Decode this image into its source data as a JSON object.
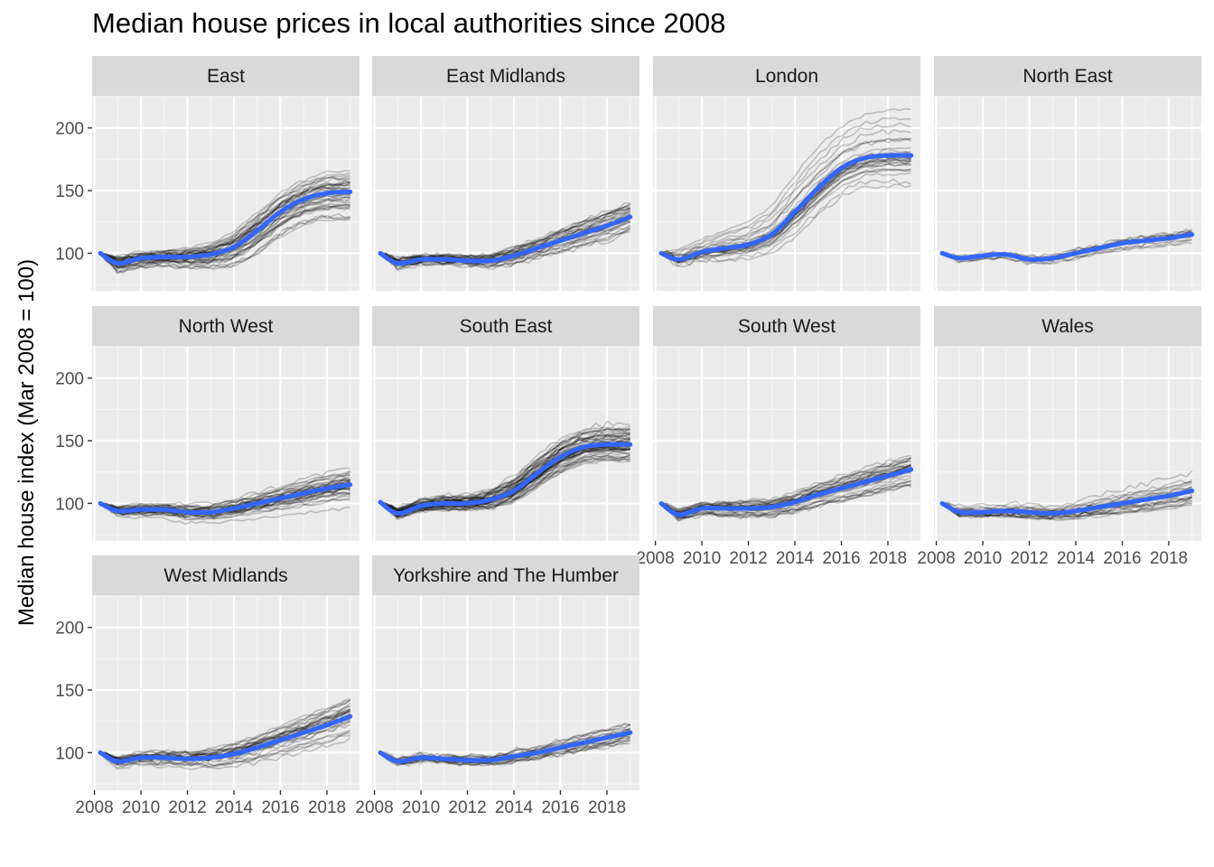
{
  "chart_data": {
    "type": "line",
    "title": "Median house prices in local authorities since 2008",
    "ylabel": "Median house index (Mar 2008 = 100)",
    "xlabel": "",
    "x_ticks": [
      "2008",
      "2010",
      "2012",
      "2014",
      "2016",
      "2018"
    ],
    "y_ticks": [
      100,
      150,
      200
    ],
    "xlim": [
      2007.9,
      2019.4
    ],
    "ylim": [
      70,
      225
    ],
    "trend_color": "#3366FF",
    "line_color": "#000000",
    "years": [
      2008.25,
      2009,
      2010,
      2011,
      2012,
      2013,
      2014,
      2015,
      2016,
      2017,
      2018,
      2019
    ],
    "panels": [
      {
        "name": "East",
        "trend": [
          100,
          92,
          96,
          97,
          97,
          99,
          105,
          118,
          133,
          143,
          148,
          149
        ],
        "spread": [
          0,
          5,
          5,
          5,
          6,
          8,
          11,
          13,
          14,
          14,
          15,
          16
        ],
        "n": 40
      },
      {
        "name": "East Midlands",
        "trend": [
          100,
          92,
          95,
          95,
          94,
          94,
          98,
          104,
          110,
          116,
          122,
          129
        ],
        "spread": [
          0,
          3,
          3,
          3,
          3,
          4,
          5,
          6,
          7,
          8,
          9,
          9
        ],
        "n": 35
      },
      {
        "name": "London",
        "trend": [
          100,
          95,
          101,
          104,
          107,
          115,
          133,
          152,
          168,
          176,
          178,
          178
        ],
        "spread": [
          0,
          5,
          6,
          8,
          10,
          13,
          17,
          19,
          19,
          20,
          21,
          21
        ],
        "n": 32
      },
      {
        "name": "North East",
        "trend": [
          100,
          96,
          98,
          99,
          95,
          96,
          100,
          104,
          108,
          110,
          112,
          115
        ],
        "spread": [
          0,
          3,
          3,
          3,
          4,
          4,
          5,
          5,
          6,
          6,
          6,
          7
        ],
        "n": 12
      },
      {
        "name": "North West",
        "trend": [
          100,
          94,
          95,
          95,
          93,
          93,
          96,
          100,
          104,
          108,
          112,
          115
        ],
        "spread": [
          0,
          3,
          4,
          4,
          5,
          5,
          6,
          7,
          8,
          9,
          10,
          11
        ],
        "n": 38
      },
      {
        "name": "South East",
        "trend": [
          101,
          92,
          98,
          100,
          100,
          103,
          110,
          124,
          137,
          145,
          147,
          147
        ],
        "spread": [
          0,
          4,
          4,
          5,
          5,
          7,
          9,
          11,
          12,
          12,
          13,
          13
        ],
        "n": 60
      },
      {
        "name": "South West",
        "trend": [
          100,
          91,
          96,
          96,
          96,
          97,
          101,
          107,
          112,
          117,
          122,
          127
        ],
        "spread": [
          0,
          4,
          4,
          5,
          6,
          6,
          7,
          8,
          9,
          10,
          10,
          11
        ],
        "n": 32
      },
      {
        "name": "Wales",
        "trend": [
          100,
          93,
          93,
          94,
          93,
          92,
          94,
          97,
          100,
          103,
          106,
          110
        ],
        "spread": [
          0,
          3,
          3,
          4,
          4,
          4,
          5,
          6,
          7,
          8,
          9,
          9
        ],
        "n": 22
      },
      {
        "name": "West Midlands",
        "trend": [
          100,
          93,
          96,
          96,
          95,
          96,
          99,
          104,
          110,
          116,
          122,
          129
        ],
        "spread": [
          0,
          3,
          3,
          4,
          4,
          5,
          6,
          7,
          8,
          9,
          10,
          11
        ],
        "n": 30
      },
      {
        "name": "Yorkshire and The Humber",
        "trend": [
          100,
          93,
          96,
          95,
          94,
          94,
          97,
          100,
          104,
          108,
          112,
          116
        ],
        "spread": [
          0,
          3,
          3,
          3,
          4,
          4,
          5,
          5,
          6,
          7,
          8,
          8
        ],
        "n": 21
      }
    ]
  }
}
